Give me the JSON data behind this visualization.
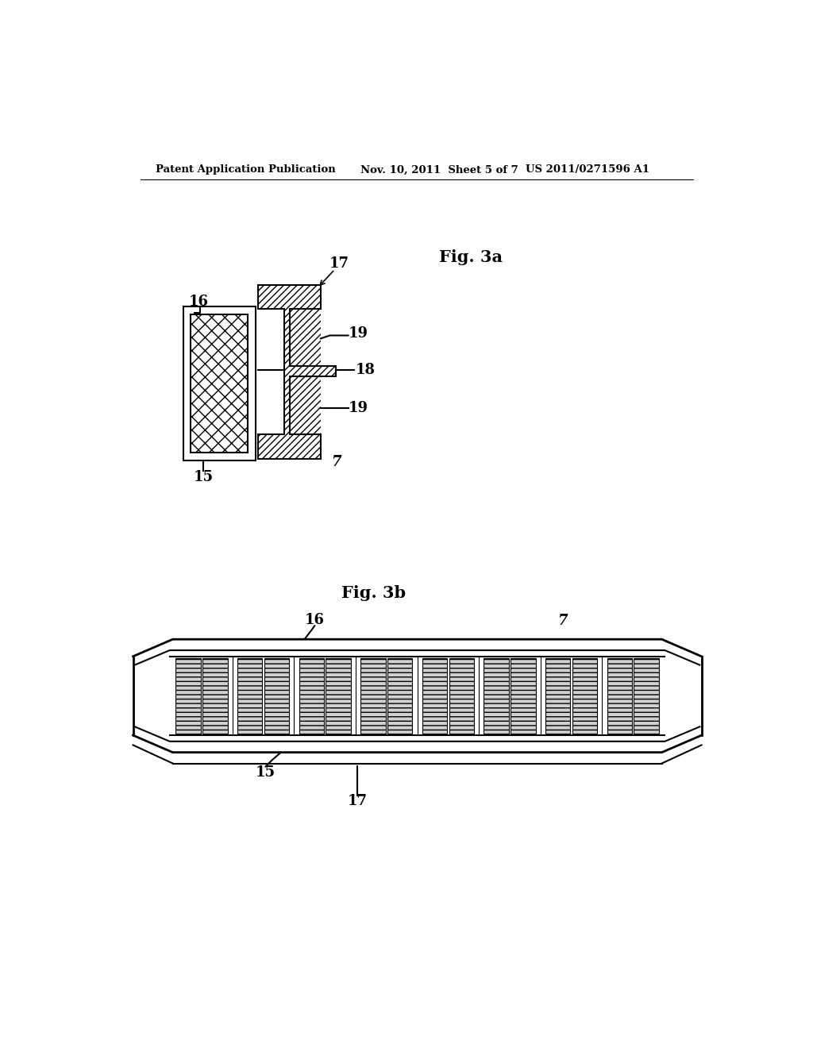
{
  "bg_color": "#ffffff",
  "header_left": "Patent Application Publication",
  "header_mid": "Nov. 10, 2011  Sheet 5 of 7",
  "header_right": "US 2011/0271596 A1",
  "fig3a_title": "Fig. 3a",
  "fig3b_title": "Fig. 3b",
  "label_7a": "7",
  "label_15a": "15",
  "label_16a": "16",
  "label_17a": "17",
  "label_18": "18",
  "label_19a": "19",
  "label_19b": "19",
  "label_7b": "7",
  "label_15b": "15",
  "label_16b": "16",
  "label_17b": "17",
  "line_color": "#000000"
}
